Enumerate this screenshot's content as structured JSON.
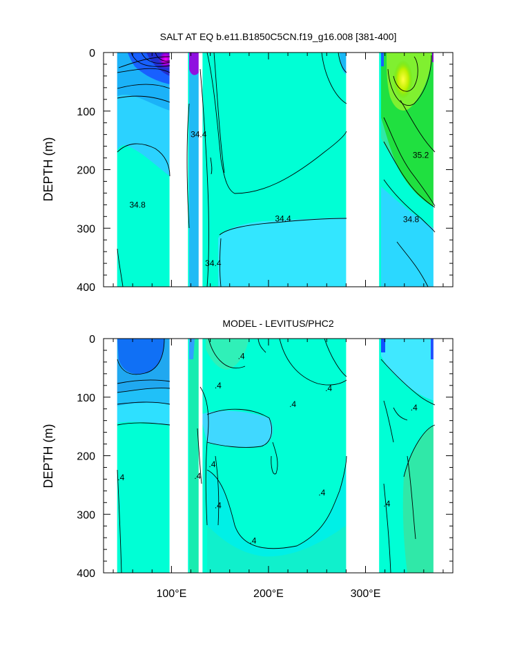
{
  "chart_data": [
    {
      "type": "contour",
      "title": "SALT AT EQ b.e11.B1850C5CN.f19_g16.008 [381-400]",
      "ylabel": "DEPTH (m)",
      "xlabel": "",
      "xlim": [
        30,
        390
      ],
      "ylim": [
        0,
        400
      ],
      "yticks": [
        0,
        100,
        200,
        300,
        400
      ],
      "ytick_labels": [
        "0",
        "100",
        "200",
        "300",
        "400"
      ],
      "xticks": [
        100,
        200,
        300
      ],
      "xtick_labels": [],
      "land_gaps": [
        [
          98,
          117
        ],
        [
          128,
          132
        ],
        [
          280,
          314
        ],
        [
          370,
          390
        ]
      ],
      "ocean_segments": [
        [
          44,
          98
        ],
        [
          117,
          128
        ],
        [
          132,
          280
        ],
        [
          314,
          370
        ]
      ],
      "contour_labels": [
        {
          "text": "34.4",
          "x": 128,
          "y": 140
        },
        {
          "text": "34.8",
          "x": 65,
          "y": 260
        },
        {
          "text": "34.4",
          "x": 215,
          "y": 284
        },
        {
          "text": "34.4",
          "x": 143,
          "y": 360
        },
        {
          "text": "35.2",
          "x": 357,
          "y": 175
        },
        {
          "text": "34.8",
          "x": 347,
          "y": 285
        }
      ]
    },
    {
      "type": "contour",
      "title": "MODEL - LEVITUS/PHC2",
      "ylabel": "DEPTH (m)",
      "xlabel": "",
      "xlim": [
        30,
        390
      ],
      "ylim": [
        0,
        400
      ],
      "yticks": [
        0,
        100,
        200,
        300,
        400
      ],
      "ytick_labels": [
        "0",
        "100",
        "200",
        "300",
        "400"
      ],
      "xticks": [
        100,
        200,
        300
      ],
      "xtick_labels": [
        "100°E",
        "200°E",
        "300°E"
      ],
      "land_gaps": [
        [
          98,
          117
        ],
        [
          128,
          132
        ],
        [
          280,
          314
        ],
        [
          370,
          390
        ]
      ],
      "ocean_segments": [
        [
          44,
          98
        ],
        [
          117,
          128
        ],
        [
          132,
          280
        ],
        [
          314,
          370
        ]
      ],
      "contour_labels": [
        {
          "text": ".4",
          "x": 172,
          "y": 30
        },
        {
          "text": ".4",
          "x": 148,
          "y": 80
        },
        {
          "text": ".4",
          "x": 262,
          "y": 85
        },
        {
          "text": ".4",
          "x": 225,
          "y": 112
        },
        {
          "text": ".4",
          "x": 350,
          "y": 118
        },
        {
          "text": ".4",
          "x": 48,
          "y": 237
        },
        {
          "text": ".4",
          "x": 127,
          "y": 235
        },
        {
          "text": ".4",
          "x": 142,
          "y": 215
        },
        {
          "text": ".4",
          "x": 148,
          "y": 285
        },
        {
          "text": ".4",
          "x": 255,
          "y": 263
        },
        {
          "text": ".4",
          "x": 322,
          "y": 282
        },
        {
          "text": ".4",
          "x": 184,
          "y": 345
        }
      ]
    }
  ],
  "colors": {
    "land": "#ffffff",
    "base": "#00ffd5",
    "bg": "#ffffff"
  }
}
